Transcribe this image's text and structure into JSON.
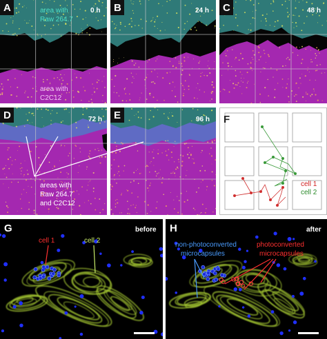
{
  "panels": [
    {
      "label": "A",
      "time": "0 h",
      "annotations": [
        "area with",
        "Raw 264.7",
        "area with",
        "C2C12"
      ]
    },
    {
      "label": "B",
      "time": "24 h"
    },
    {
      "label": "C",
      "time": "48 h"
    },
    {
      "label": "D",
      "time": "72 h",
      "annotations": [
        "areas with",
        "Raw 264.7",
        "and C2C12"
      ]
    },
    {
      "label": "E",
      "time": "96 h"
    },
    {
      "label": "F",
      "annotations": [
        "cell 1",
        "cell 2"
      ]
    },
    {
      "label": "G",
      "time": "before",
      "annotations": [
        "cell 1",
        "cell 2"
      ]
    },
    {
      "label": "H",
      "time": "after",
      "annotations": [
        "non-photoconverted",
        "microcapsules",
        "photoconverted",
        "microcapsules"
      ]
    }
  ]
}
